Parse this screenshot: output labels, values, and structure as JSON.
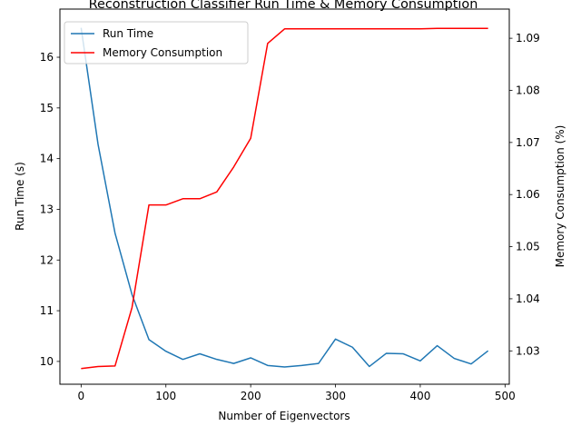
{
  "chart_data": {
    "type": "line",
    "title": "Reconstruction Classifier Run Time & Memory Consumption",
    "xlabel": "Number of Eigenvectors",
    "ylabel": "Run Time (s)",
    "ylabel_right": "Memory Consumption (%)",
    "xlim": [
      -25,
      505
    ],
    "ylim": [
      9.55,
      16.95
    ],
    "ylim_right": [
      1.0236,
      1.0956
    ],
    "x_ticks": [
      0,
      100,
      200,
      300,
      400,
      500
    ],
    "y_ticks": [
      10,
      11,
      12,
      13,
      14,
      15,
      16
    ],
    "y_ticks_right": [
      1.03,
      1.04,
      1.05,
      1.06,
      1.07,
      1.08,
      1.09
    ],
    "grid": false,
    "legend_position": "upper-left",
    "x": [
      0,
      20,
      40,
      60,
      80,
      100,
      120,
      140,
      160,
      180,
      200,
      220,
      240,
      260,
      280,
      300,
      320,
      340,
      360,
      380,
      400,
      420,
      440,
      460,
      480
    ],
    "series": [
      {
        "name": "Run Time",
        "axis": "left",
        "color": "#1f77b4",
        "values": [
          16.58,
          14.28,
          12.53,
          11.32,
          10.43,
          10.2,
          10.04,
          10.15,
          10.04,
          9.96,
          10.07,
          9.92,
          9.89,
          9.92,
          9.96,
          10.44,
          10.28,
          9.9,
          10.16,
          10.15,
          10.01,
          10.31,
          10.06,
          9.95,
          10.21
        ]
      },
      {
        "name": "Memory Consumption",
        "axis": "right",
        "color": "#ff0000",
        "values": [
          1.0266,
          1.027,
          1.0271,
          1.0383,
          1.058,
          1.058,
          1.0592,
          1.0592,
          1.0605,
          1.0653,
          1.0708,
          1.089,
          1.0918,
          1.0918,
          1.0918,
          1.0918,
          1.0918,
          1.0918,
          1.0918,
          1.0918,
          1.0918,
          1.0919,
          1.0919,
          1.0919,
          1.0919
        ]
      }
    ]
  }
}
